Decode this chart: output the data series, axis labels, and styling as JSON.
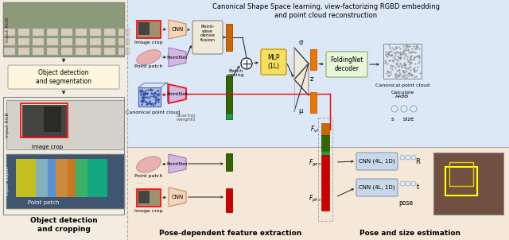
{
  "fig_width": 6.4,
  "fig_height": 3.02,
  "dpi": 100,
  "bg_left": "#f5f0e8",
  "bg_right_top": "#e8eef5",
  "bg_right_bottom": "#f5ede8",
  "title_text": "Canonical Shape Space learning, view-factorizing RGBD embedding\nand point cloud reconstruction",
  "left_section_label": "Object detection\nand cropping",
  "left_section_label2": "Object detection\nand segmentation",
  "bottom_label_left": "Pose-dependent feature extraction",
  "bottom_label_right": "Pose and size estimation"
}
